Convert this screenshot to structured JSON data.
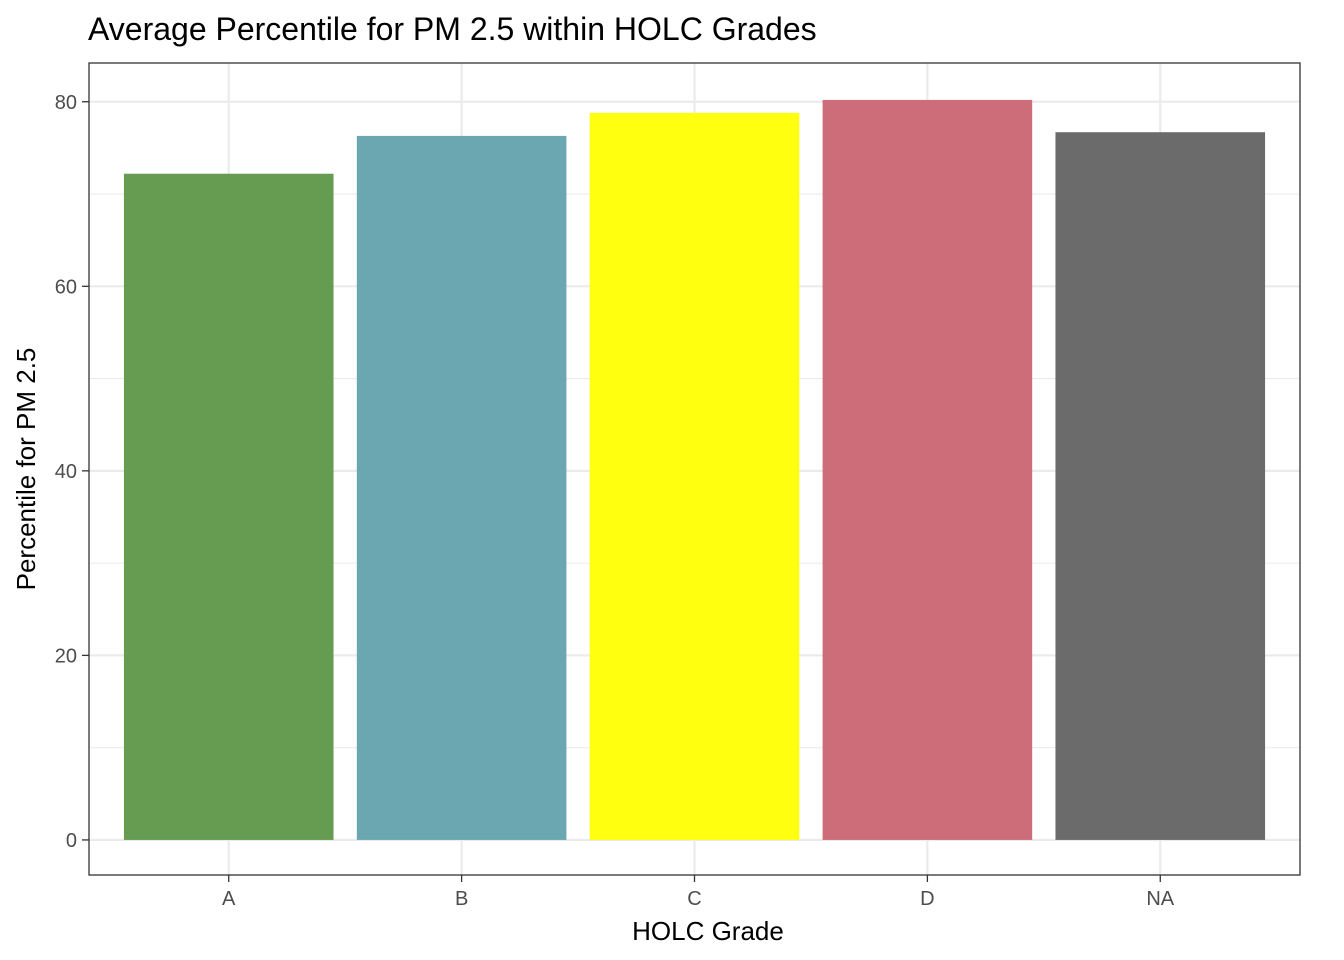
{
  "chart_data": {
    "type": "bar",
    "title": "Average Percentile for PM 2.5 within HOLC Grades",
    "xlabel": "HOLC Grade",
    "ylabel": "Percentile for PM 2.5",
    "categories": [
      "A",
      "B",
      "C",
      "D",
      "NA"
    ],
    "values": [
      72.2,
      76.3,
      78.8,
      80.2,
      76.7
    ],
    "colors": [
      "#669B52",
      "#6BA7B0",
      "#FFFF0F",
      "#CC6D79",
      "#6B6B6B"
    ],
    "ylim": [
      -3.8,
      84.2
    ],
    "yticks": [
      0,
      20,
      40,
      60,
      80
    ],
    "ytick_labels": [
      "0",
      "20",
      "40",
      "60",
      "80"
    ],
    "grid": true,
    "legend": "none"
  }
}
